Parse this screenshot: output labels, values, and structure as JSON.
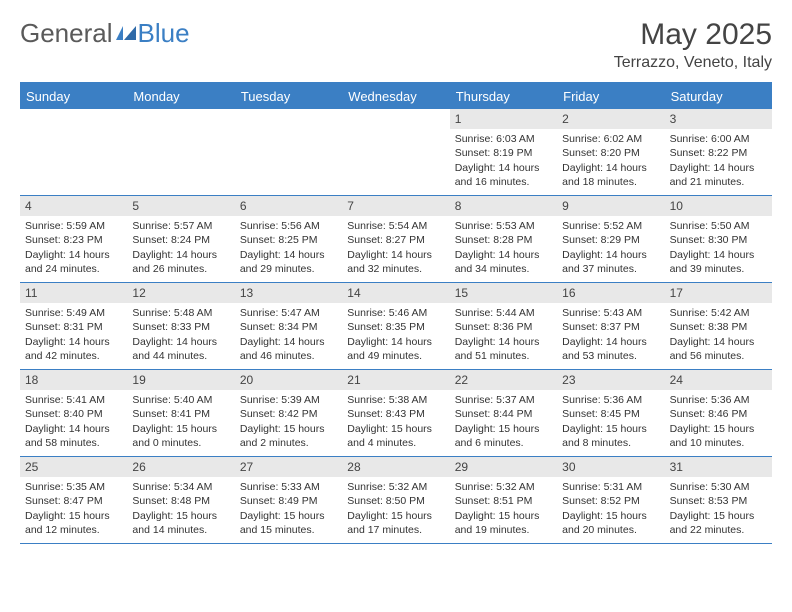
{
  "brand": {
    "part1": "General",
    "part2": "Blue"
  },
  "title": "May 2025",
  "location": "Terrazzo, Veneto, Italy",
  "colors": {
    "accent": "#3b7fc4",
    "header_text": "#ffffff",
    "daynum_bg": "#e8e8e8",
    "text": "#333333",
    "background": "#ffffff"
  },
  "typography": {
    "body_fontsize": 10.5,
    "title_fontsize": 30,
    "location_fontsize": 16,
    "dayhead_fontsize": 13
  },
  "day_names": [
    "Sunday",
    "Monday",
    "Tuesday",
    "Wednesday",
    "Thursday",
    "Friday",
    "Saturday"
  ],
  "weeks": [
    [
      {
        "n": "",
        "sr": "",
        "ss": "",
        "dl": ""
      },
      {
        "n": "",
        "sr": "",
        "ss": "",
        "dl": ""
      },
      {
        "n": "",
        "sr": "",
        "ss": "",
        "dl": ""
      },
      {
        "n": "",
        "sr": "",
        "ss": "",
        "dl": ""
      },
      {
        "n": "1",
        "sr": "Sunrise: 6:03 AM",
        "ss": "Sunset: 8:19 PM",
        "dl": "Daylight: 14 hours and 16 minutes."
      },
      {
        "n": "2",
        "sr": "Sunrise: 6:02 AM",
        "ss": "Sunset: 8:20 PM",
        "dl": "Daylight: 14 hours and 18 minutes."
      },
      {
        "n": "3",
        "sr": "Sunrise: 6:00 AM",
        "ss": "Sunset: 8:22 PM",
        "dl": "Daylight: 14 hours and 21 minutes."
      }
    ],
    [
      {
        "n": "4",
        "sr": "Sunrise: 5:59 AM",
        "ss": "Sunset: 8:23 PM",
        "dl": "Daylight: 14 hours and 24 minutes."
      },
      {
        "n": "5",
        "sr": "Sunrise: 5:57 AM",
        "ss": "Sunset: 8:24 PM",
        "dl": "Daylight: 14 hours and 26 minutes."
      },
      {
        "n": "6",
        "sr": "Sunrise: 5:56 AM",
        "ss": "Sunset: 8:25 PM",
        "dl": "Daylight: 14 hours and 29 minutes."
      },
      {
        "n": "7",
        "sr": "Sunrise: 5:54 AM",
        "ss": "Sunset: 8:27 PM",
        "dl": "Daylight: 14 hours and 32 minutes."
      },
      {
        "n": "8",
        "sr": "Sunrise: 5:53 AM",
        "ss": "Sunset: 8:28 PM",
        "dl": "Daylight: 14 hours and 34 minutes."
      },
      {
        "n": "9",
        "sr": "Sunrise: 5:52 AM",
        "ss": "Sunset: 8:29 PM",
        "dl": "Daylight: 14 hours and 37 minutes."
      },
      {
        "n": "10",
        "sr": "Sunrise: 5:50 AM",
        "ss": "Sunset: 8:30 PM",
        "dl": "Daylight: 14 hours and 39 minutes."
      }
    ],
    [
      {
        "n": "11",
        "sr": "Sunrise: 5:49 AM",
        "ss": "Sunset: 8:31 PM",
        "dl": "Daylight: 14 hours and 42 minutes."
      },
      {
        "n": "12",
        "sr": "Sunrise: 5:48 AM",
        "ss": "Sunset: 8:33 PM",
        "dl": "Daylight: 14 hours and 44 minutes."
      },
      {
        "n": "13",
        "sr": "Sunrise: 5:47 AM",
        "ss": "Sunset: 8:34 PM",
        "dl": "Daylight: 14 hours and 46 minutes."
      },
      {
        "n": "14",
        "sr": "Sunrise: 5:46 AM",
        "ss": "Sunset: 8:35 PM",
        "dl": "Daylight: 14 hours and 49 minutes."
      },
      {
        "n": "15",
        "sr": "Sunrise: 5:44 AM",
        "ss": "Sunset: 8:36 PM",
        "dl": "Daylight: 14 hours and 51 minutes."
      },
      {
        "n": "16",
        "sr": "Sunrise: 5:43 AM",
        "ss": "Sunset: 8:37 PM",
        "dl": "Daylight: 14 hours and 53 minutes."
      },
      {
        "n": "17",
        "sr": "Sunrise: 5:42 AM",
        "ss": "Sunset: 8:38 PM",
        "dl": "Daylight: 14 hours and 56 minutes."
      }
    ],
    [
      {
        "n": "18",
        "sr": "Sunrise: 5:41 AM",
        "ss": "Sunset: 8:40 PM",
        "dl": "Daylight: 14 hours and 58 minutes."
      },
      {
        "n": "19",
        "sr": "Sunrise: 5:40 AM",
        "ss": "Sunset: 8:41 PM",
        "dl": "Daylight: 15 hours and 0 minutes."
      },
      {
        "n": "20",
        "sr": "Sunrise: 5:39 AM",
        "ss": "Sunset: 8:42 PM",
        "dl": "Daylight: 15 hours and 2 minutes."
      },
      {
        "n": "21",
        "sr": "Sunrise: 5:38 AM",
        "ss": "Sunset: 8:43 PM",
        "dl": "Daylight: 15 hours and 4 minutes."
      },
      {
        "n": "22",
        "sr": "Sunrise: 5:37 AM",
        "ss": "Sunset: 8:44 PM",
        "dl": "Daylight: 15 hours and 6 minutes."
      },
      {
        "n": "23",
        "sr": "Sunrise: 5:36 AM",
        "ss": "Sunset: 8:45 PM",
        "dl": "Daylight: 15 hours and 8 minutes."
      },
      {
        "n": "24",
        "sr": "Sunrise: 5:36 AM",
        "ss": "Sunset: 8:46 PM",
        "dl": "Daylight: 15 hours and 10 minutes."
      }
    ],
    [
      {
        "n": "25",
        "sr": "Sunrise: 5:35 AM",
        "ss": "Sunset: 8:47 PM",
        "dl": "Daylight: 15 hours and 12 minutes."
      },
      {
        "n": "26",
        "sr": "Sunrise: 5:34 AM",
        "ss": "Sunset: 8:48 PM",
        "dl": "Daylight: 15 hours and 14 minutes."
      },
      {
        "n": "27",
        "sr": "Sunrise: 5:33 AM",
        "ss": "Sunset: 8:49 PM",
        "dl": "Daylight: 15 hours and 15 minutes."
      },
      {
        "n": "28",
        "sr": "Sunrise: 5:32 AM",
        "ss": "Sunset: 8:50 PM",
        "dl": "Daylight: 15 hours and 17 minutes."
      },
      {
        "n": "29",
        "sr": "Sunrise: 5:32 AM",
        "ss": "Sunset: 8:51 PM",
        "dl": "Daylight: 15 hours and 19 minutes."
      },
      {
        "n": "30",
        "sr": "Sunrise: 5:31 AM",
        "ss": "Sunset: 8:52 PM",
        "dl": "Daylight: 15 hours and 20 minutes."
      },
      {
        "n": "31",
        "sr": "Sunrise: 5:30 AM",
        "ss": "Sunset: 8:53 PM",
        "dl": "Daylight: 15 hours and 22 minutes."
      }
    ]
  ]
}
